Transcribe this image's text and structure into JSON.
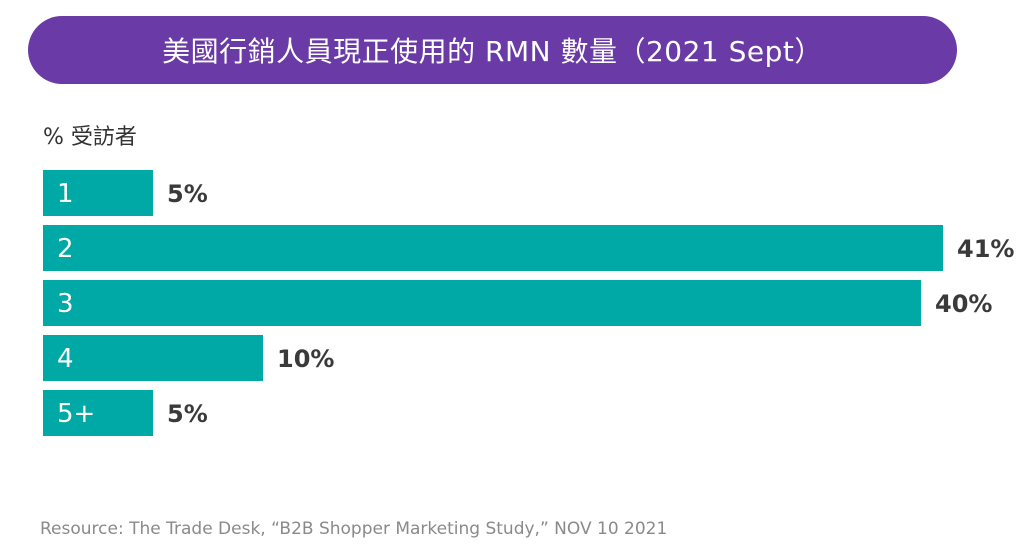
{
  "title": "美國行銷人員現正使用的 RMN 數量（2021 Sept）",
  "unit_label": "% 受訪者",
  "source": "Resource: The Trade Desk, “B2B Shopper Marketing Study,” NOV 10 2021",
  "colors": {
    "title_bg": "#6a3aa6",
    "bar": "#00a9a5",
    "bar_text": "#ffffff",
    "value_text": "#3a3a3a"
  },
  "chart_data": {
    "type": "bar",
    "orientation": "horizontal",
    "categories": [
      "1",
      "2",
      "3",
      "4",
      "5+"
    ],
    "values": [
      5,
      41,
      40,
      10,
      5
    ],
    "value_labels": [
      "5%",
      "41%",
      "40%",
      "10%",
      "5%"
    ],
    "unit": "%",
    "xlim": [
      0,
      41
    ]
  }
}
